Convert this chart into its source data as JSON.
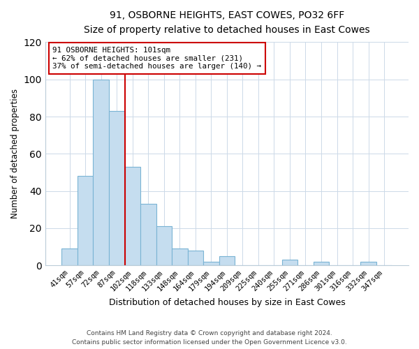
{
  "title": "91, OSBORNE HEIGHTS, EAST COWES, PO32 6FF",
  "subtitle": "Size of property relative to detached houses in East Cowes",
  "xlabel": "Distribution of detached houses by size in East Cowes",
  "ylabel": "Number of detached properties",
  "bin_labels": [
    "41sqm",
    "57sqm",
    "72sqm",
    "87sqm",
    "102sqm",
    "118sqm",
    "133sqm",
    "148sqm",
    "164sqm",
    "179sqm",
    "194sqm",
    "209sqm",
    "225sqm",
    "240sqm",
    "255sqm",
    "271sqm",
    "286sqm",
    "301sqm",
    "316sqm",
    "332sqm",
    "347sqm"
  ],
  "bar_heights": [
    9,
    48,
    100,
    83,
    53,
    33,
    21,
    9,
    8,
    2,
    5,
    0,
    0,
    0,
    3,
    0,
    2,
    0,
    0,
    2,
    0
  ],
  "bar_color": "#c5ddef",
  "bar_edge_color": "#7ab4d4",
  "property_line_x": 3.5,
  "property_line_color": "#cc0000",
  "ylim": [
    0,
    120
  ],
  "yticks": [
    0,
    20,
    40,
    60,
    80,
    100,
    120
  ],
  "annotation_title": "91 OSBORNE HEIGHTS: 101sqm",
  "annotation_line1": "← 62% of detached houses are smaller (231)",
  "annotation_line2": "37% of semi-detached houses are larger (140) →",
  "annotation_box_color": "#ffffff",
  "annotation_box_edge": "#cc0000",
  "footer_line1": "Contains HM Land Registry data © Crown copyright and database right 2024.",
  "footer_line2": "Contains public sector information licensed under the Open Government Licence v3.0.",
  "background_color": "#ffffff",
  "grid_color": "#ccd9e8"
}
